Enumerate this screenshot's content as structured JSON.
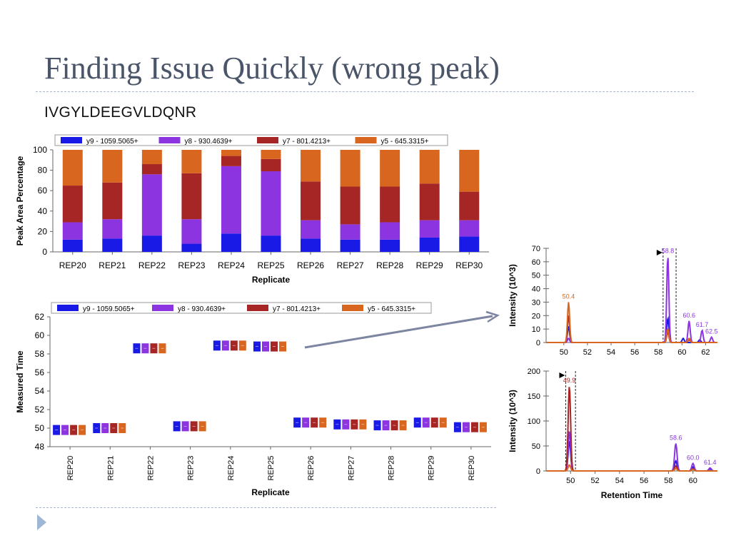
{
  "slide": {
    "title": "Finding Issue Quickly (wrong peak)",
    "subtitle": "IVGYLDEEGVLDQNR"
  },
  "colors": {
    "y9": "#1a1ae6",
    "y8": "#8b34e0",
    "y7": "#a62626",
    "y5": "#d9661f"
  },
  "chart_data": [
    {
      "type": "bar",
      "stacked": true,
      "categories": [
        "REP20",
        "REP21",
        "REP22",
        "REP23",
        "REP24",
        "REP25",
        "REP26",
        "REP27",
        "REP28",
        "REP29",
        "REP30"
      ],
      "series": [
        {
          "name": "y9 - 1059.5065+",
          "color": "#1a1ae6",
          "values": [
            12,
            13,
            16,
            8,
            18,
            16,
            13,
            12,
            12,
            14,
            15
          ]
        },
        {
          "name": "y8 - 930.4639+",
          "color": "#8b34e0",
          "values": [
            17,
            19,
            60,
            24,
            66,
            63,
            18,
            15,
            17,
            17,
            16
          ]
        },
        {
          "name": "y7 - 801.4213+",
          "color": "#a62626",
          "values": [
            36,
            36,
            10,
            45,
            10,
            12,
            38,
            37,
            35,
            36,
            28
          ]
        },
        {
          "name": "y5 - 645.3315+",
          "color": "#d9661f",
          "values": [
            35,
            32,
            14,
            23,
            6,
            9,
            31,
            36,
            36,
            33,
            41
          ]
        }
      ],
      "xlabel": "Replicate",
      "ylabel": "Peak Area Percentage",
      "ylim": [
        0,
        100
      ],
      "yticks": [
        0,
        20,
        40,
        60,
        80,
        100
      ],
      "legend": "top"
    },
    {
      "type": "scatter",
      "categories": [
        "REP20",
        "REP21",
        "REP22",
        "REP23",
        "REP24",
        "REP25",
        "REP26",
        "REP27",
        "REP28",
        "REP29",
        "REP30"
      ],
      "series": [
        {
          "name": "y9 - 1059.5065+",
          "color": "#1a1ae6",
          "values": [
            49.8,
            50.0,
            58.6,
            50.2,
            58.9,
            58.8,
            50.6,
            50.4,
            50.3,
            50.6,
            50.1
          ]
        },
        {
          "name": "y8 - 930.4639+",
          "color": "#8b34e0",
          "values": [
            49.8,
            50.0,
            58.6,
            50.2,
            58.9,
            58.8,
            50.6,
            50.4,
            50.3,
            50.6,
            50.1
          ]
        },
        {
          "name": "y7 - 801.4213+",
          "color": "#a62626",
          "values": [
            49.8,
            50.0,
            58.6,
            50.2,
            58.9,
            58.8,
            50.6,
            50.4,
            50.3,
            50.6,
            50.1
          ]
        },
        {
          "name": "y5 - 645.3315+",
          "color": "#d9661f",
          "values": [
            49.8,
            50.0,
            58.6,
            50.2,
            58.9,
            58.8,
            50.6,
            50.4,
            50.3,
            50.6,
            50.1
          ]
        }
      ],
      "xlabel": "Replicate",
      "ylabel": "Measured Time",
      "ylim": [
        48,
        62
      ],
      "yticks": [
        48,
        50,
        52,
        54,
        56,
        58,
        60,
        62
      ],
      "legend": "top"
    },
    {
      "type": "line",
      "ylabel": "Intensity (10^3)",
      "xlim": [
        48.5,
        63
      ],
      "ylim": [
        0,
        70
      ],
      "xticks": [
        50,
        52,
        54,
        56,
        58,
        60,
        62
      ],
      "yticks": [
        0,
        10,
        20,
        30,
        40,
        50,
        60,
        70
      ],
      "boundaries": [
        58.4,
        59.5
      ],
      "series": [
        {
          "name": "y9",
          "color": "#1a1ae6",
          "peaks": [
            [
              50.4,
              12
            ],
            [
              58.8,
              18
            ],
            [
              60.1,
              3
            ],
            [
              61.5,
              2
            ]
          ]
        },
        {
          "name": "y8",
          "color": "#8b34e0",
          "peaks": [
            [
              50.4,
              3
            ],
            [
              58.8,
              64
            ],
            [
              60.6,
              16
            ],
            [
              61.7,
              9
            ],
            [
              62.5,
              4
            ]
          ]
        },
        {
          "name": "y7",
          "color": "#a62626",
          "peaks": [
            [
              50.4,
              20
            ],
            [
              58.8,
              8
            ],
            [
              60.6,
              2
            ]
          ]
        },
        {
          "name": "y5",
          "color": "#d9661f",
          "peaks": [
            [
              50.4,
              30
            ],
            [
              58.8,
              10
            ],
            [
              60.6,
              3
            ]
          ]
        }
      ],
      "annotations": [
        {
          "x": 50.4,
          "label": "50.4",
          "color": "#d9661f"
        },
        {
          "x": 58.8,
          "label": "58.8",
          "color": "#8b34e0"
        },
        {
          "x": 60.6,
          "label": "60.6",
          "color": "#8b34e0"
        },
        {
          "x": 61.7,
          "label": "61.7",
          "color": "#8b34e0"
        },
        {
          "x": 62.5,
          "label": "62.5",
          "color": "#8b34e0"
        }
      ]
    },
    {
      "type": "line",
      "xlabel": "Retention Time",
      "ylabel": "Intensity (10^3)",
      "xlim": [
        48,
        62
      ],
      "ylim": [
        0,
        200
      ],
      "xticks": [
        50,
        52,
        54,
        56,
        58,
        60
      ],
      "yticks": [
        0,
        50,
        100,
        150,
        200
      ],
      "boundaries": [
        49.6,
        50.4
      ],
      "series": [
        {
          "name": "y9",
          "color": "#1a1ae6",
          "peaks": [
            [
              49.9,
              60
            ],
            [
              58.6,
              20
            ],
            [
              60.0,
              8
            ],
            [
              61.4,
              4
            ]
          ]
        },
        {
          "name": "y8",
          "color": "#8b34e0",
          "peaks": [
            [
              49.9,
              80
            ],
            [
              58.6,
              55
            ],
            [
              60.0,
              15
            ],
            [
              61.4,
              6
            ]
          ]
        },
        {
          "name": "y7",
          "color": "#a62626",
          "peaks": [
            [
              49.9,
              170
            ],
            [
              58.6,
              10
            ],
            [
              60.0,
              4
            ]
          ]
        },
        {
          "name": "y5",
          "color": "#d9661f",
          "peaks": [
            [
              49.9,
              12
            ],
            [
              58.6,
              5
            ],
            [
              60.0,
              3
            ]
          ]
        }
      ],
      "annotations": [
        {
          "x": 49.9,
          "label": "49.9",
          "color": "#a62626"
        },
        {
          "x": 58.6,
          "label": "58.6",
          "color": "#8b34e0"
        },
        {
          "x": 60.0,
          "label": "60.0",
          "color": "#8b34e0"
        },
        {
          "x": 61.4,
          "label": "61.4",
          "color": "#8b34e0"
        }
      ]
    }
  ]
}
